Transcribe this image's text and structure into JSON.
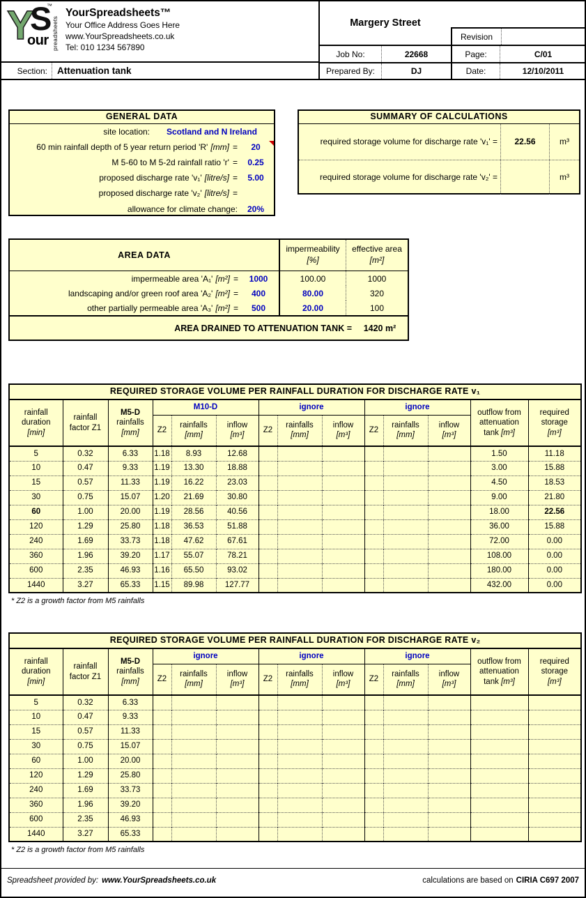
{
  "colors": {
    "panel_bg": "#FFFFCC",
    "input_blue": "#0000C0",
    "comment_red": "#CC0000",
    "logo_green": "#74A86F"
  },
  "header": {
    "logo": {
      "y": "Y",
      "s": "S",
      "our": "our",
      "vertical": "preadsheets",
      "tm": "™"
    },
    "company": {
      "name": "YourSpreadsheets™",
      "address": "Your Office Address Goes Here",
      "website": "www.YourSpreadsheets.co.uk",
      "tel": "Tel: 010 1234 567890"
    },
    "section_label": "Section:",
    "section_value": "Attenuation tank",
    "project": {
      "name": "Margery Street",
      "revision_label": "Revision",
      "revision_value": "",
      "job_label": "Job No:",
      "job_value": "22668",
      "page_label": "Page:",
      "page_value": "C/01",
      "prepared_label": "Prepared By:",
      "prepared_value": "DJ",
      "date_label": "Date:",
      "date_value": "12/10/2011"
    }
  },
  "general_data": {
    "title": "GENERAL DATA",
    "rows": [
      {
        "label": "site location:",
        "unit": "",
        "eq": "",
        "value": "Scotland and N Ireland",
        "wide": true,
        "input": true,
        "has_comment": false
      },
      {
        "label": "60 min rainfall depth of 5 year return period 'R'",
        "unit": "[mm]",
        "eq": "=",
        "value": "20",
        "wide": false,
        "input": true,
        "has_comment": true
      },
      {
        "label": "M 5-60 to M 5-2d rainfall ratio 'r'",
        "unit": "",
        "eq": "=",
        "value": "0.25",
        "wide": false,
        "input": true,
        "has_comment": false
      },
      {
        "label": "proposed discharge rate 'v₁'",
        "unit": "[litre/s]",
        "eq": "=",
        "value": "5.00",
        "wide": false,
        "input": true,
        "has_comment": false
      },
      {
        "label": "proposed discharge rate 'v₂'",
        "unit": "[litre/s]",
        "eq": "=",
        "value": "",
        "wide": false,
        "input": true,
        "has_comment": false
      },
      {
        "label": "allowance for climate change:",
        "unit": "",
        "eq": "",
        "value": "20%",
        "wide": false,
        "input": true,
        "has_comment": false
      }
    ]
  },
  "summary": {
    "title": "SUMMARY OF CALCULATIONS",
    "rows": [
      {
        "label": "required storage volume for discharge rate 'v₁' =",
        "value": "22.56",
        "unit": "m³"
      },
      {
        "label": "required storage volume for discharge rate 'v₂' =",
        "value": "",
        "unit": "m³"
      }
    ]
  },
  "area_data": {
    "title": "AREA DATA",
    "col_impermeability": {
      "label": "impermeability",
      "unit": "[%]"
    },
    "col_effective": {
      "label": "effective area",
      "unit": "[m²]"
    },
    "rows": [
      {
        "label": "impermeable area 'A₁'",
        "unit": "[m²]",
        "eq": "=",
        "value": "1000",
        "imperm": "100.00",
        "imperm_input": false,
        "effective": "1000"
      },
      {
        "label": "landscaping and/or green roof area 'A₂'",
        "unit": "[m²]",
        "eq": "=",
        "value": "400",
        "imperm": "80.00",
        "imperm_input": true,
        "effective": "320"
      },
      {
        "label": "other partially permeable area 'A₃'",
        "unit": "[m²]",
        "eq": "=",
        "value": "500",
        "imperm": "20.00",
        "imperm_input": true,
        "effective": "100"
      }
    ],
    "total_label": "AREA DRAINED TO ATTENUATION TANK =",
    "total_value": "1420",
    "total_unit": "m²"
  },
  "tables": {
    "columns": {
      "duration_label": "rainfall duration",
      "duration_unit": "[min]",
      "factor_label": "rainfall factor Z1",
      "m5d_bold": "M5-D",
      "m5d_label": "rainfalls",
      "m5d_unit": "[mm]",
      "outflow_label": "outflow from attenuation tank",
      "outflow_unit": "[m³]",
      "storage_label": "required storage",
      "storage_unit": "[m³]"
    },
    "sub_headers": {
      "z2": "Z2",
      "rainfalls": "rainfalls",
      "rainfalls_unit": "[mm]",
      "inflow": "inflow",
      "inflow_unit": "[m³]"
    },
    "footnote": "* Z2 is a growth factor from M5 rainfalls",
    "t1": {
      "title": "REQUIRED STORAGE VOLUME PER RAINFALL DURATION  FOR DISCHARGE RATE v₁",
      "groups": [
        "M10-D",
        "ignore",
        "ignore"
      ],
      "rows": [
        {
          "duration": "5",
          "factor": "0.32",
          "m5d": "6.33",
          "g1": [
            "1.18",
            "8.93",
            "12.68"
          ],
          "g2": [
            "",
            "",
            ""
          ],
          "g3": [
            "",
            "",
            ""
          ],
          "outflow": "1.50",
          "storage": "11.18",
          "bold": false
        },
        {
          "duration": "10",
          "factor": "0.47",
          "m5d": "9.33",
          "g1": [
            "1.19",
            "13.30",
            "18.88"
          ],
          "g2": [
            "",
            "",
            ""
          ],
          "g3": [
            "",
            "",
            ""
          ],
          "outflow": "3.00",
          "storage": "15.88",
          "bold": false
        },
        {
          "duration": "15",
          "factor": "0.57",
          "m5d": "11.33",
          "g1": [
            "1.19",
            "16.22",
            "23.03"
          ],
          "g2": [
            "",
            "",
            ""
          ],
          "g3": [
            "",
            "",
            ""
          ],
          "outflow": "4.50",
          "storage": "18.53",
          "bold": false
        },
        {
          "duration": "30",
          "factor": "0.75",
          "m5d": "15.07",
          "g1": [
            "1.20",
            "21.69",
            "30.80"
          ],
          "g2": [
            "",
            "",
            ""
          ],
          "g3": [
            "",
            "",
            ""
          ],
          "outflow": "9.00",
          "storage": "21.80",
          "bold": false
        },
        {
          "duration": "60",
          "factor": "1.00",
          "m5d": "20.00",
          "g1": [
            "1.19",
            "28.56",
            "40.56"
          ],
          "g2": [
            "",
            "",
            ""
          ],
          "g3": [
            "",
            "",
            ""
          ],
          "outflow": "18.00",
          "storage": "22.56",
          "bold": true
        },
        {
          "duration": "120",
          "factor": "1.29",
          "m5d": "25.80",
          "g1": [
            "1.18",
            "36.53",
            "51.88"
          ],
          "g2": [
            "",
            "",
            ""
          ],
          "g3": [
            "",
            "",
            ""
          ],
          "outflow": "36.00",
          "storage": "15.88",
          "bold": false
        },
        {
          "duration": "240",
          "factor": "1.69",
          "m5d": "33.73",
          "g1": [
            "1.18",
            "47.62",
            "67.61"
          ],
          "g2": [
            "",
            "",
            ""
          ],
          "g3": [
            "",
            "",
            ""
          ],
          "outflow": "72.00",
          "storage": "0.00",
          "bold": false
        },
        {
          "duration": "360",
          "factor": "1.96",
          "m5d": "39.20",
          "g1": [
            "1.17",
            "55.07",
            "78.21"
          ],
          "g2": [
            "",
            "",
            ""
          ],
          "g3": [
            "",
            "",
            ""
          ],
          "outflow": "108.00",
          "storage": "0.00",
          "bold": false
        },
        {
          "duration": "600",
          "factor": "2.35",
          "m5d": "46.93",
          "g1": [
            "1.16",
            "65.50",
            "93.02"
          ],
          "g2": [
            "",
            "",
            ""
          ],
          "g3": [
            "",
            "",
            ""
          ],
          "outflow": "180.00",
          "storage": "0.00",
          "bold": false
        },
        {
          "duration": "1440",
          "factor": "3.27",
          "m5d": "65.33",
          "g1": [
            "1.15",
            "89.98",
            "127.77"
          ],
          "g2": [
            "",
            "",
            ""
          ],
          "g3": [
            "",
            "",
            ""
          ],
          "outflow": "432.00",
          "storage": "0.00",
          "bold": false
        }
      ]
    },
    "t2": {
      "title": "REQUIRED STORAGE VOLUME PER RAINFALL DURATION  FOR DISCHARGE RATE v₂",
      "groups": [
        "ignore",
        "ignore",
        "ignore"
      ],
      "rows": [
        {
          "duration": "5",
          "factor": "0.32",
          "m5d": "6.33",
          "g1": [
            "",
            "",
            ""
          ],
          "g2": [
            "",
            "",
            ""
          ],
          "g3": [
            "",
            "",
            ""
          ],
          "outflow": "",
          "storage": "",
          "bold": false
        },
        {
          "duration": "10",
          "factor": "0.47",
          "m5d": "9.33",
          "g1": [
            "",
            "",
            ""
          ],
          "g2": [
            "",
            "",
            ""
          ],
          "g3": [
            "",
            "",
            ""
          ],
          "outflow": "",
          "storage": "",
          "bold": false
        },
        {
          "duration": "15",
          "factor": "0.57",
          "m5d": "11.33",
          "g1": [
            "",
            "",
            ""
          ],
          "g2": [
            "",
            "",
            ""
          ],
          "g3": [
            "",
            "",
            ""
          ],
          "outflow": "",
          "storage": "",
          "bold": false
        },
        {
          "duration": "30",
          "factor": "0.75",
          "m5d": "15.07",
          "g1": [
            "",
            "",
            ""
          ],
          "g2": [
            "",
            "",
            ""
          ],
          "g3": [
            "",
            "",
            ""
          ],
          "outflow": "",
          "storage": "",
          "bold": false
        },
        {
          "duration": "60",
          "factor": "1.00",
          "m5d": "20.00",
          "g1": [
            "",
            "",
            ""
          ],
          "g2": [
            "",
            "",
            ""
          ],
          "g3": [
            "",
            "",
            ""
          ],
          "outflow": "",
          "storage": "",
          "bold": false
        },
        {
          "duration": "120",
          "factor": "1.29",
          "m5d": "25.80",
          "g1": [
            "",
            "",
            ""
          ],
          "g2": [
            "",
            "",
            ""
          ],
          "g3": [
            "",
            "",
            ""
          ],
          "outflow": "",
          "storage": "",
          "bold": false
        },
        {
          "duration": "240",
          "factor": "1.69",
          "m5d": "33.73",
          "g1": [
            "",
            "",
            ""
          ],
          "g2": [
            "",
            "",
            ""
          ],
          "g3": [
            "",
            "",
            ""
          ],
          "outflow": "",
          "storage": "",
          "bold": false
        },
        {
          "duration": "360",
          "factor": "1.96",
          "m5d": "39.20",
          "g1": [
            "",
            "",
            ""
          ],
          "g2": [
            "",
            "",
            ""
          ],
          "g3": [
            "",
            "",
            ""
          ],
          "outflow": "",
          "storage": "",
          "bold": false
        },
        {
          "duration": "600",
          "factor": "2.35",
          "m5d": "46.93",
          "g1": [
            "",
            "",
            ""
          ],
          "g2": [
            "",
            "",
            ""
          ],
          "g3": [
            "",
            "",
            ""
          ],
          "outflow": "",
          "storage": "",
          "bold": false
        },
        {
          "duration": "1440",
          "factor": "3.27",
          "m5d": "65.33",
          "g1": [
            "",
            "",
            ""
          ],
          "g2": [
            "",
            "",
            ""
          ],
          "g3": [
            "",
            "",
            ""
          ],
          "outflow": "",
          "storage": "",
          "bold": false
        }
      ]
    }
  },
  "footer": {
    "left_label": "Spreadsheet provided by:",
    "left_link": "www.YourSpreadsheets.co.uk",
    "right_text": "calculations are based on",
    "right_ref": "CIRIA C697 2007"
  }
}
